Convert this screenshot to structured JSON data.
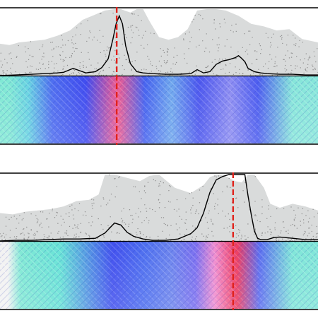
{
  "chart_data": [
    {
      "type": "area",
      "title": "",
      "xlabel": "",
      "ylabel": "",
      "grid": false,
      "legend": "none",
      "xlim": [
        0,
        100
      ],
      "ylim": [
        0,
        100
      ],
      "marker_x": 36.7,
      "series": [
        {
          "role": "envelope",
          "x": [
            0,
            3,
            6,
            10,
            14,
            18,
            22,
            26,
            30,
            33,
            36,
            38,
            41,
            43,
            45,
            47,
            50,
            53,
            56,
            59,
            62,
            65,
            68,
            71,
            75,
            79,
            83,
            87,
            91,
            95,
            100
          ],
          "values": [
            48,
            46,
            50,
            52,
            54,
            60,
            68,
            84,
            92,
            98,
            100,
            100,
            95,
            100,
            100,
            82,
            58,
            54,
            58,
            70,
            98,
            100,
            100,
            98,
            90,
            78,
            74,
            68,
            70,
            55,
            50
          ]
        },
        {
          "role": "profile",
          "x": [
            0,
            5,
            10,
            14,
            18,
            20,
            23,
            27,
            30,
            32,
            34,
            35.5,
            36.5,
            37.5,
            38.5,
            39.5,
            41,
            43,
            45,
            48,
            52,
            56,
            60,
            62,
            64,
            66,
            68,
            70,
            72,
            74,
            75,
            76,
            77,
            78,
            80,
            82,
            84,
            88,
            92,
            96,
            100
          ],
          "values": [
            0,
            1,
            2,
            3,
            4,
            5,
            11,
            4,
            6,
            12,
            25,
            55,
            78,
            90,
            78,
            45,
            18,
            6,
            4,
            3,
            2,
            2,
            3,
            9,
            4,
            6,
            17,
            22,
            24,
            27,
            30,
            26,
            21,
            11,
            6,
            4,
            3,
            2,
            2,
            1,
            1
          ]
        },
        {
          "role": "heatmap",
          "bands": [
            {
              "x": [
                0,
                6
              ],
              "color": "#7fe8d4"
            },
            {
              "x": [
                6,
                12
              ],
              "color": "#66d2e2"
            },
            {
              "x": [
                12,
                21
              ],
              "color": "#4d6cf0"
            },
            {
              "x": [
                21,
                33
              ],
              "color": "#3f4bf0"
            },
            {
              "x": [
                33,
                41
              ],
              "color": "#f25a8e"
            },
            {
              "x": [
                41,
                50
              ],
              "color": "#4562f0"
            },
            {
              "x": [
                50,
                58
              ],
              "color": "#6fa8ee"
            },
            {
              "x": [
                58,
                67
              ],
              "color": "#4a55ef"
            },
            {
              "x": [
                67,
                78
              ],
              "color": "#8c8cf2"
            },
            {
              "x": [
                78,
                84
              ],
              "color": "#4b5bf0"
            },
            {
              "x": [
                84,
                100
              ],
              "color": "#86e6da"
            }
          ]
        }
      ]
    },
    {
      "type": "area",
      "title": "",
      "xlabel": "",
      "ylabel": "",
      "grid": false,
      "legend": "none",
      "xlim": [
        0,
        100
      ],
      "ylim": [
        0,
        100
      ],
      "marker_x": 73.3,
      "series": [
        {
          "role": "envelope",
          "x": [
            0,
            4,
            8,
            12,
            16,
            20,
            24,
            28,
            31,
            33,
            36,
            40,
            44,
            47,
            50,
            55,
            60,
            64,
            66,
            68,
            70,
            72,
            74,
            76,
            78,
            80,
            83,
            85,
            88,
            92,
            96,
            100
          ],
          "values": [
            42,
            40,
            44,
            46,
            48,
            52,
            60,
            62,
            70,
            100,
            100,
            95,
            90,
            98,
            100,
            80,
            72,
            84,
            96,
            100,
            100,
            95,
            90,
            88,
            100,
            100,
            80,
            56,
            50,
            56,
            52,
            46
          ]
        },
        {
          "role": "profile",
          "x": [
            0,
            5,
            10,
            15,
            20,
            25,
            30,
            33,
            36,
            38,
            40,
            42,
            45,
            48,
            52,
            56,
            60,
            62,
            64,
            66,
            68,
            70,
            72,
            74,
            75,
            76,
            77,
            78,
            79,
            80,
            81,
            82,
            84,
            86,
            88,
            92,
            96,
            100
          ],
          "values": [
            0,
            1,
            1,
            2,
            3,
            3,
            4,
            12,
            27,
            24,
            13,
            7,
            3,
            1,
            1,
            3,
            11,
            20,
            42,
            73,
            92,
            97,
            100,
            100,
            100,
            100,
            100,
            68,
            40,
            15,
            4,
            2,
            2,
            5,
            6,
            4,
            2,
            2
          ]
        },
        {
          "role": "heatmap",
          "bands": [
            {
              "x": [
                0,
                5
              ],
              "color": "#f2f2f2"
            },
            {
              "x": [
                5,
                8
              ],
              "color": "#7fe8d4"
            },
            {
              "x": [
                8,
                30
              ],
              "color": "#66e2d6"
            },
            {
              "x": [
                30,
                41
              ],
              "color": "#4150ef"
            },
            {
              "x": [
                41,
                50
              ],
              "color": "#4d6ff0"
            },
            {
              "x": [
                50,
                58
              ],
              "color": "#6c84ee"
            },
            {
              "x": [
                58,
                65
              ],
              "color": "#7a6ef0"
            },
            {
              "x": [
                65,
                70
              ],
              "color": "#f08ccf"
            },
            {
              "x": [
                70,
                79
              ],
              "color": "#f03a5e"
            },
            {
              "x": [
                79,
                84
              ],
              "color": "#5b6cf0"
            },
            {
              "x": [
                84,
                100
              ],
              "color": "#7fe6d8"
            }
          ]
        }
      ]
    }
  ],
  "colors": {
    "envelope": "#d9dbdb",
    "dots": "#8f8f8f",
    "profile": "#000000",
    "marker": "#e0231c",
    "frame": "#000000"
  }
}
